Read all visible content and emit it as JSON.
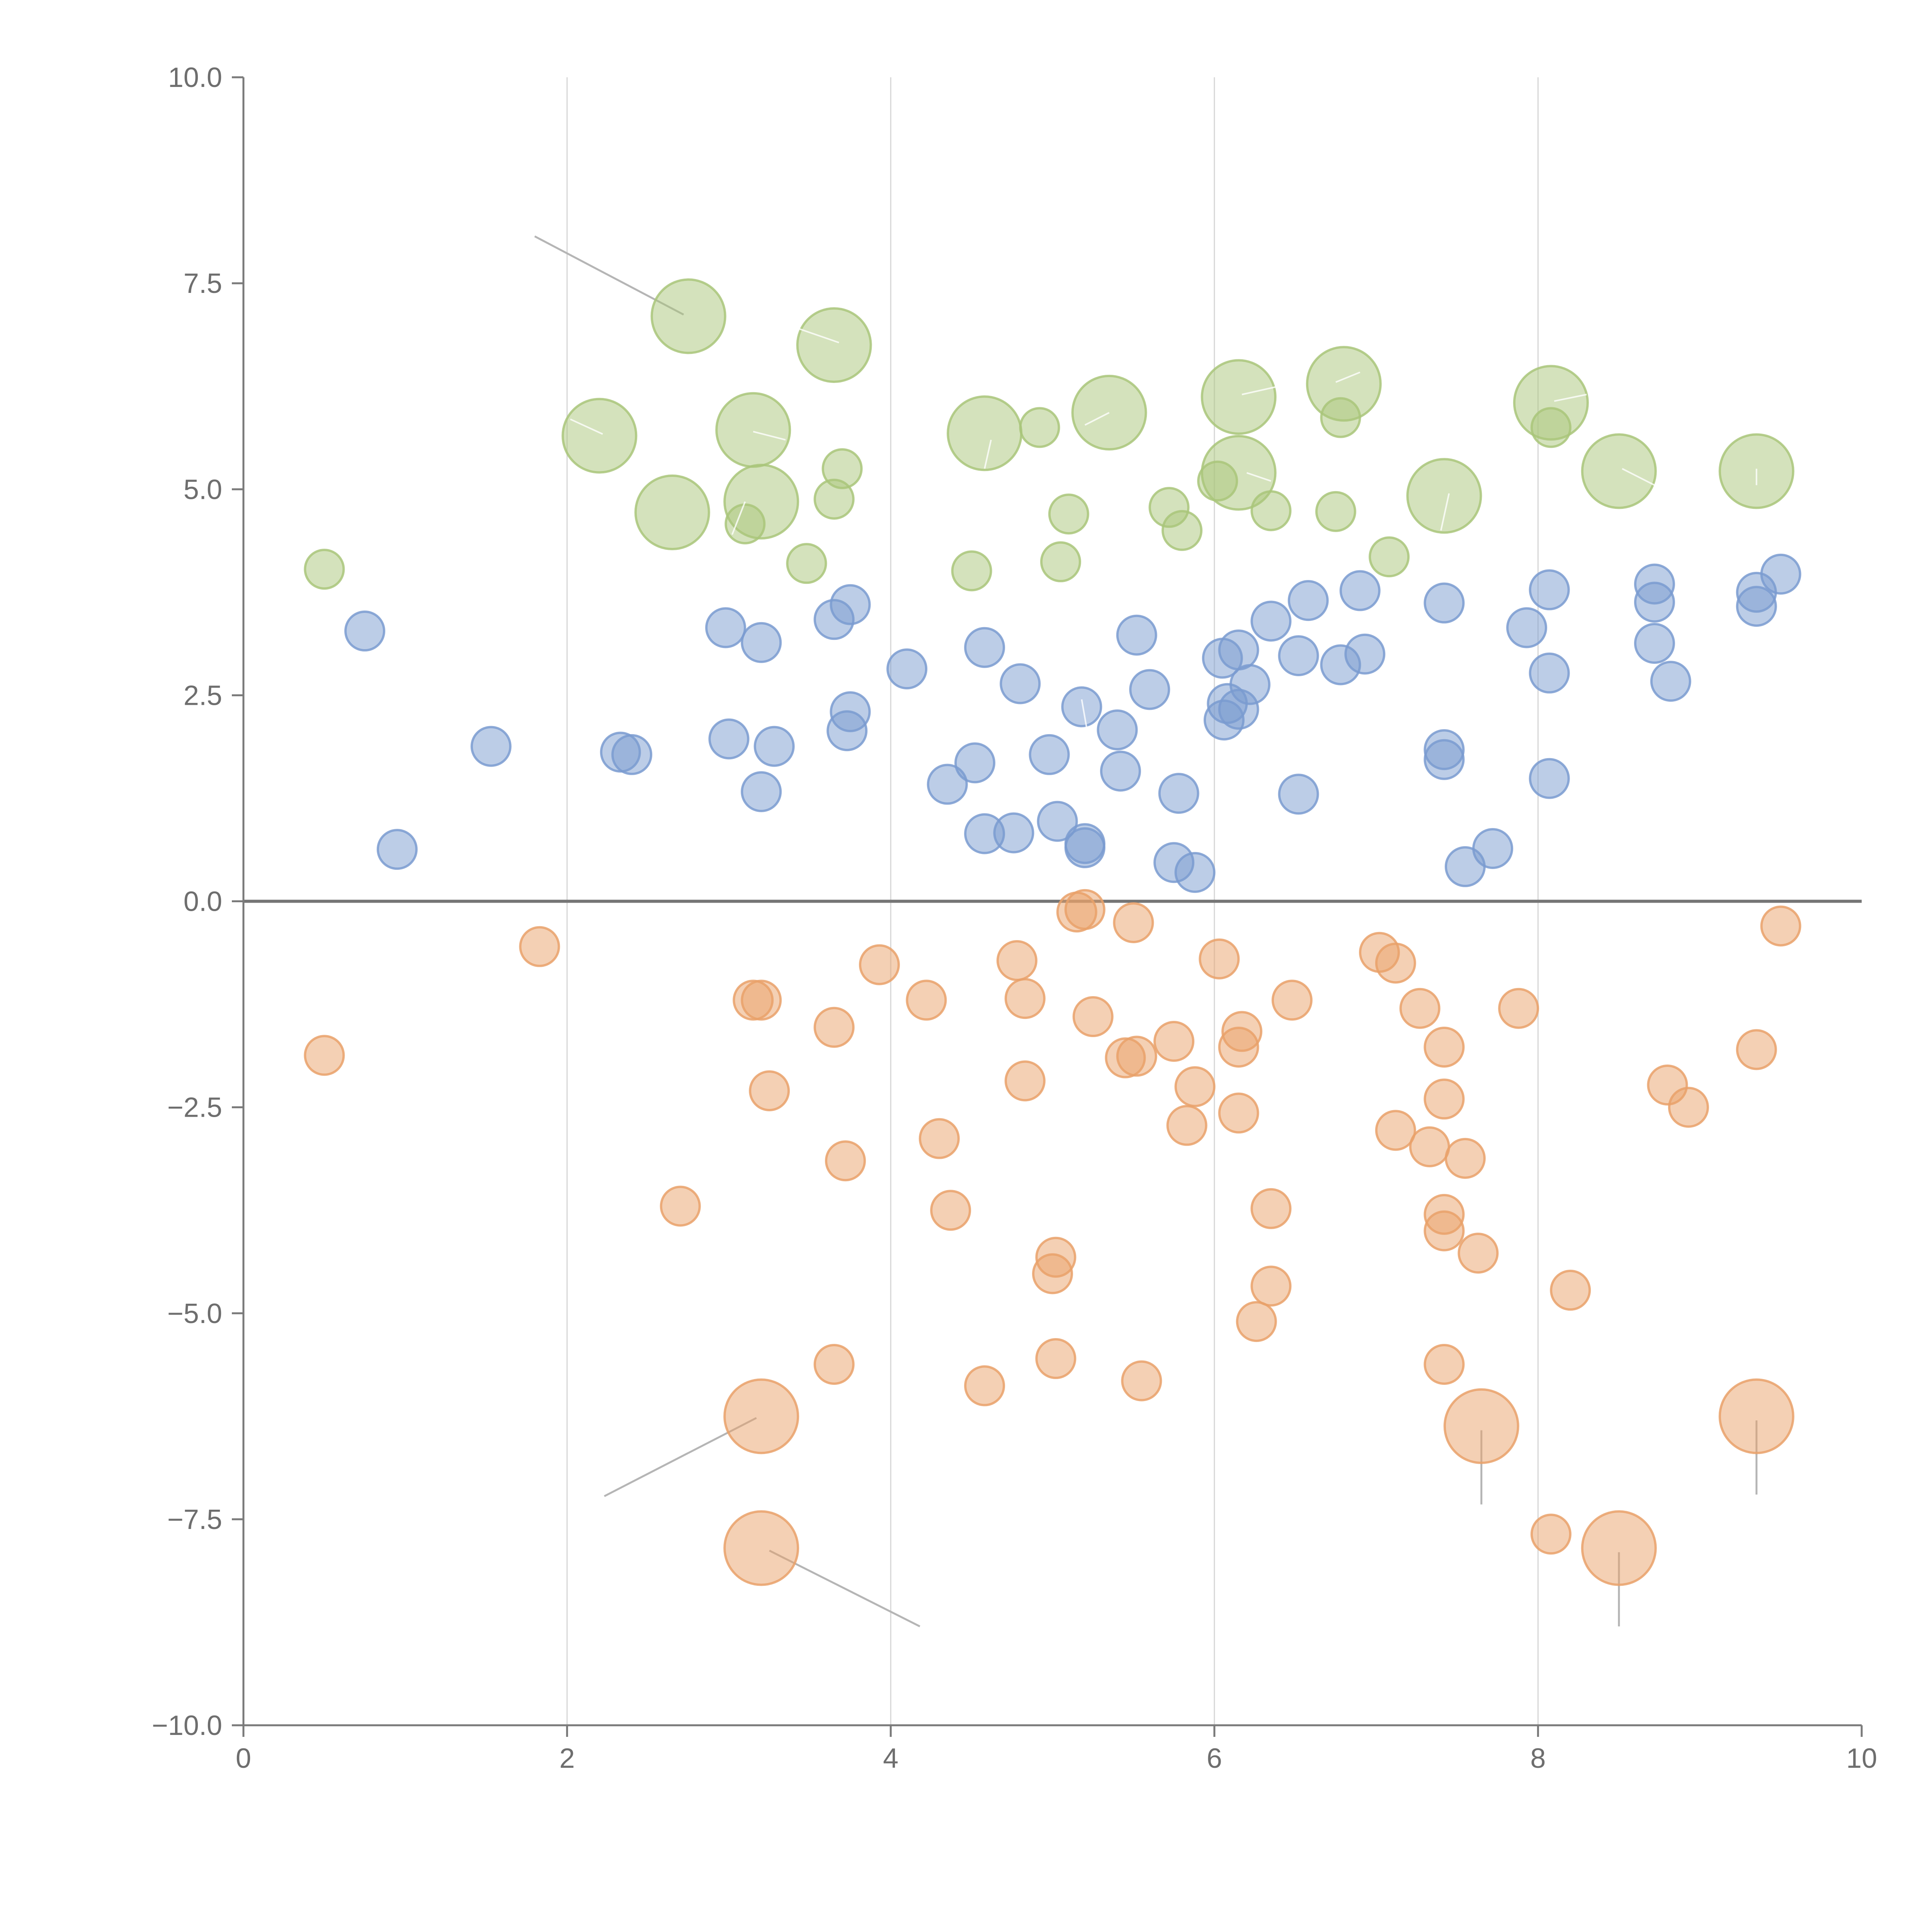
{
  "chart_data": {
    "type": "scatter",
    "title": "",
    "xlabel": "",
    "ylabel": "",
    "xlim": [
      0,
      10
    ],
    "ylim": [
      -10,
      10
    ],
    "x_ticks": [
      0,
      2,
      4,
      6,
      8,
      10
    ],
    "y_ticks": [
      -10,
      -7.5,
      -5,
      -2.5,
      0,
      2.5,
      5,
      7.5,
      10
    ],
    "x_tick_labels": [
      "0",
      "2",
      "4",
      "6",
      "8",
      "10"
    ],
    "y_tick_labels": [
      "−10.0",
      "−7.5",
      "−5.0",
      "−2.5",
      "0.0",
      "2.5",
      "5.0",
      "7.5",
      "10.0"
    ],
    "grid": "vertical lines at x ticks",
    "reference_line": {
      "y": 0
    },
    "colors": {
      "green": "#a9c57a",
      "blue": "#7a9bd0",
      "orange": "#e9a16a",
      "axis": "#7a7a7a",
      "grid": "#d6d6d6"
    },
    "series": [
      {
        "name": "green",
        "color": "#a9c57a",
        "points": [
          {
            "x": 0.5,
            "y": 4.03,
            "s": "sm"
          },
          {
            "x": 2.2,
            "y": 5.65,
            "s": "lg"
          },
          {
            "x": 2.65,
            "y": 4.72,
            "s": "lg"
          },
          {
            "x": 2.75,
            "y": 7.1,
            "s": "lg"
          },
          {
            "x": 3.1,
            "y": 4.58,
            "s": "sm"
          },
          {
            "x": 3.15,
            "y": 5.72,
            "s": "lg"
          },
          {
            "x": 3.2,
            "y": 4.85,
            "s": "lg"
          },
          {
            "x": 3.48,
            "y": 4.1,
            "s": "sm"
          },
          {
            "x": 3.65,
            "y": 4.88,
            "s": "sm"
          },
          {
            "x": 3.65,
            "y": 6.75,
            "s": "lg"
          },
          {
            "x": 3.7,
            "y": 5.25,
            "s": "sm"
          },
          {
            "x": 4.5,
            "y": 4.01,
            "s": "sm"
          },
          {
            "x": 4.58,
            "y": 5.68,
            "s": "lg"
          },
          {
            "x": 4.92,
            "y": 5.75,
            "s": "sm"
          },
          {
            "x": 5.05,
            "y": 4.12,
            "s": "sm"
          },
          {
            "x": 5.1,
            "y": 4.7,
            "s": "sm"
          },
          {
            "x": 5.35,
            "y": 5.93,
            "s": "lg"
          },
          {
            "x": 5.72,
            "y": 4.78,
            "s": "sm"
          },
          {
            "x": 5.8,
            "y": 4.5,
            "s": "sm"
          },
          {
            "x": 6.02,
            "y": 5.1,
            "s": "sm"
          },
          {
            "x": 6.15,
            "y": 6.12,
            "s": "lg"
          },
          {
            "x": 6.15,
            "y": 5.2,
            "s": "lg"
          },
          {
            "x": 6.35,
            "y": 4.74,
            "s": "sm"
          },
          {
            "x": 6.75,
            "y": 4.73,
            "s": "sm"
          },
          {
            "x": 6.78,
            "y": 5.87,
            "s": "sm"
          },
          {
            "x": 6.8,
            "y": 6.28,
            "s": "lg"
          },
          {
            "x": 7.08,
            "y": 4.18,
            "s": "sm"
          },
          {
            "x": 7.42,
            "y": 4.92,
            "s": "lg"
          },
          {
            "x": 8.08,
            "y": 6.05,
            "s": "lg"
          },
          {
            "x": 8.08,
            "y": 5.75,
            "s": "sm"
          },
          {
            "x": 8.5,
            "y": 5.22,
            "s": "lg"
          },
          {
            "x": 9.35,
            "y": 5.22,
            "s": "lg"
          }
        ]
      },
      {
        "name": "blue",
        "color": "#7a9bd0",
        "points": [
          {
            "x": 0.75,
            "y": 3.28
          },
          {
            "x": 0.95,
            "y": 0.63
          },
          {
            "x": 1.53,
            "y": 1.88
          },
          {
            "x": 2.33,
            "y": 1.81
          },
          {
            "x": 2.4,
            "y": 1.78
          },
          {
            "x": 2.98,
            "y": 3.32
          },
          {
            "x": 3.0,
            "y": 1.97
          },
          {
            "x": 3.2,
            "y": 3.14
          },
          {
            "x": 3.2,
            "y": 1.33
          },
          {
            "x": 3.28,
            "y": 1.88
          },
          {
            "x": 3.65,
            "y": 3.42
          },
          {
            "x": 3.73,
            "y": 2.07
          },
          {
            "x": 3.75,
            "y": 2.3
          },
          {
            "x": 3.75,
            "y": 3.6
          },
          {
            "x": 4.1,
            "y": 2.82
          },
          {
            "x": 4.35,
            "y": 1.42
          },
          {
            "x": 4.52,
            "y": 1.68
          },
          {
            "x": 4.58,
            "y": 0.82
          },
          {
            "x": 4.58,
            "y": 3.08
          },
          {
            "x": 4.76,
            "y": 0.83
          },
          {
            "x": 4.8,
            "y": 2.64
          },
          {
            "x": 4.98,
            "y": 1.78
          },
          {
            "x": 5.03,
            "y": 0.97
          },
          {
            "x": 5.18,
            "y": 2.36
          },
          {
            "x": 5.2,
            "y": 0.7
          },
          {
            "x": 5.2,
            "y": 0.65
          },
          {
            "x": 5.4,
            "y": 2.08
          },
          {
            "x": 5.42,
            "y": 1.58
          },
          {
            "x": 5.52,
            "y": 3.23
          },
          {
            "x": 5.6,
            "y": 2.57
          },
          {
            "x": 5.75,
            "y": 0.47
          },
          {
            "x": 5.78,
            "y": 1.31
          },
          {
            "x": 5.88,
            "y": 0.35
          },
          {
            "x": 6.05,
            "y": 2.95
          },
          {
            "x": 6.06,
            "y": 2.2
          },
          {
            "x": 6.08,
            "y": 2.4
          },
          {
            "x": 6.15,
            "y": 3.05
          },
          {
            "x": 6.15,
            "y": 2.33
          },
          {
            "x": 6.22,
            "y": 2.63
          },
          {
            "x": 6.35,
            "y": 3.4
          },
          {
            "x": 6.52,
            "y": 2.98
          },
          {
            "x": 6.52,
            "y": 1.3
          },
          {
            "x": 6.58,
            "y": 3.65
          },
          {
            "x": 6.78,
            "y": 2.87
          },
          {
            "x": 6.9,
            "y": 3.77
          },
          {
            "x": 6.93,
            "y": 3.0
          },
          {
            "x": 7.42,
            "y": 3.62
          },
          {
            "x": 7.42,
            "y": 1.84
          },
          {
            "x": 7.42,
            "y": 1.72
          },
          {
            "x": 7.55,
            "y": 0.42
          },
          {
            "x": 7.72,
            "y": 0.64
          },
          {
            "x": 7.93,
            "y": 3.32
          },
          {
            "x": 8.07,
            "y": 3.78
          },
          {
            "x": 8.07,
            "y": 2.77
          },
          {
            "x": 8.07,
            "y": 1.49
          },
          {
            "x": 8.72,
            "y": 3.85
          },
          {
            "x": 8.72,
            "y": 3.63
          },
          {
            "x": 8.72,
            "y": 3.13
          },
          {
            "x": 8.82,
            "y": 2.67
          },
          {
            "x": 9.35,
            "y": 3.75
          },
          {
            "x": 9.35,
            "y": 3.58
          },
          {
            "x": 9.5,
            "y": 3.97
          }
        ]
      },
      {
        "name": "orange",
        "color": "#e9a16a",
        "points": [
          {
            "x": 0.5,
            "y": -1.87,
            "s": "sm"
          },
          {
            "x": 1.83,
            "y": -0.55,
            "s": "sm"
          },
          {
            "x": 2.7,
            "y": -3.7,
            "s": "sm"
          },
          {
            "x": 3.15,
            "y": -1.2,
            "s": "sm"
          },
          {
            "x": 3.2,
            "y": -1.2,
            "s": "sm"
          },
          {
            "x": 3.2,
            "y": -6.25,
            "s": "lg"
          },
          {
            "x": 3.2,
            "y": -7.85,
            "s": "lg"
          },
          {
            "x": 3.25,
            "y": -2.3,
            "s": "sm"
          },
          {
            "x": 3.65,
            "y": -1.53,
            "s": "sm"
          },
          {
            "x": 3.65,
            "y": -5.62,
            "s": "sm"
          },
          {
            "x": 3.72,
            "y": -3.15,
            "s": "sm"
          },
          {
            "x": 3.93,
            "y": -0.77,
            "s": "sm"
          },
          {
            "x": 4.22,
            "y": -1.2,
            "s": "sm"
          },
          {
            "x": 4.3,
            "y": -2.88,
            "s": "sm"
          },
          {
            "x": 4.37,
            "y": -3.75,
            "s": "sm"
          },
          {
            "x": 4.58,
            "y": -5.88,
            "s": "sm"
          },
          {
            "x": 4.78,
            "y": -0.72,
            "s": "sm"
          },
          {
            "x": 4.83,
            "y": -1.18,
            "s": "sm"
          },
          {
            "x": 4.83,
            "y": -2.18,
            "s": "sm"
          },
          {
            "x": 5.0,
            "y": -4.52,
            "s": "sm"
          },
          {
            "x": 5.02,
            "y": -4.32,
            "s": "sm"
          },
          {
            "x": 5.02,
            "y": -5.55,
            "s": "sm"
          },
          {
            "x": 5.15,
            "y": -0.13,
            "s": "sm"
          },
          {
            "x": 5.2,
            "y": -0.1,
            "s": "sm"
          },
          {
            "x": 5.25,
            "y": -1.4,
            "s": "sm"
          },
          {
            "x": 5.45,
            "y": -1.9,
            "s": "sm"
          },
          {
            "x": 5.5,
            "y": -0.26,
            "s": "sm"
          },
          {
            "x": 5.52,
            "y": -1.88,
            "s": "sm"
          },
          {
            "x": 5.55,
            "y": -5.82,
            "s": "sm"
          },
          {
            "x": 5.75,
            "y": -1.7,
            "s": "sm"
          },
          {
            "x": 5.83,
            "y": -2.72,
            "s": "sm"
          },
          {
            "x": 5.88,
            "y": -2.25,
            "s": "sm"
          },
          {
            "x": 6.03,
            "y": -0.7,
            "s": "sm"
          },
          {
            "x": 6.15,
            "y": -1.77,
            "s": "sm"
          },
          {
            "x": 6.15,
            "y": -2.57,
            "s": "sm"
          },
          {
            "x": 6.17,
            "y": -1.58,
            "s": "sm"
          },
          {
            "x": 6.26,
            "y": -5.1,
            "s": "sm"
          },
          {
            "x": 6.35,
            "y": -3.73,
            "s": "sm"
          },
          {
            "x": 6.35,
            "y": -4.67,
            "s": "sm"
          },
          {
            "x": 6.48,
            "y": -1.2,
            "s": "sm"
          },
          {
            "x": 7.02,
            "y": -0.62,
            "s": "sm"
          },
          {
            "x": 7.12,
            "y": -0.75,
            "s": "sm"
          },
          {
            "x": 7.12,
            "y": -2.78,
            "s": "sm"
          },
          {
            "x": 7.27,
            "y": -1.3,
            "s": "sm"
          },
          {
            "x": 7.33,
            "y": -2.98,
            "s": "sm"
          },
          {
            "x": 7.42,
            "y": -1.77,
            "s": "sm"
          },
          {
            "x": 7.42,
            "y": -2.4,
            "s": "sm"
          },
          {
            "x": 7.42,
            "y": -3.8,
            "s": "sm"
          },
          {
            "x": 7.42,
            "y": -4.0,
            "s": "sm"
          },
          {
            "x": 7.42,
            "y": -5.62,
            "s": "sm"
          },
          {
            "x": 7.55,
            "y": -3.12,
            "s": "sm"
          },
          {
            "x": 7.63,
            "y": -4.27,
            "s": "sm"
          },
          {
            "x": 7.65,
            "y": -6.37,
            "s": "lg"
          },
          {
            "x": 7.88,
            "y": -1.3,
            "s": "sm"
          },
          {
            "x": 8.08,
            "y": -7.68,
            "s": "sm"
          },
          {
            "x": 8.2,
            "y": -4.72,
            "s": "sm"
          },
          {
            "x": 8.5,
            "y": -7.85,
            "s": "lg"
          },
          {
            "x": 8.8,
            "y": -2.23,
            "s": "sm"
          },
          {
            "x": 8.93,
            "y": -2.5,
            "s": "sm"
          },
          {
            "x": 9.35,
            "y": -1.8,
            "s": "sm"
          },
          {
            "x": 9.35,
            "y": -6.25,
            "s": "lg"
          },
          {
            "x": 9.5,
            "y": -0.3,
            "s": "sm"
          }
        ]
      }
    ],
    "leader_lines": [
      {
        "color": "grey",
        "x1": 1.8,
        "y1": 8.07,
        "x2": 2.72,
        "y2": 7.12
      },
      {
        "color": "grey",
        "x1": 2.23,
        "y1": -7.22,
        "x2": 3.17,
        "y2": -6.27
      },
      {
        "color": "grey",
        "x1": 3.25,
        "y1": -7.88,
        "x2": 4.18,
        "y2": -8.8
      },
      {
        "color": "grey",
        "x1": 7.65,
        "y1": -6.42,
        "x2": 7.65,
        "y2": -7.32
      },
      {
        "color": "grey",
        "x1": 8.5,
        "y1": -7.9,
        "x2": 8.5,
        "y2": -8.8
      },
      {
        "color": "grey",
        "x1": 9.35,
        "y1": -6.3,
        "x2": 9.35,
        "y2": -7.2
      },
      {
        "color": "white",
        "x1": 3.68,
        "y1": 6.78,
        "x2": 3.4,
        "y2": 6.97
      },
      {
        "color": "white",
        "x1": 2.22,
        "y1": 5.67,
        "x2": 2.02,
        "y2": 5.85
      },
      {
        "color": "white",
        "x1": 5.35,
        "y1": 5.93,
        "x2": 5.2,
        "y2": 5.78
      },
      {
        "color": "white",
        "x1": 6.75,
        "y1": 6.3,
        "x2": 6.9,
        "y2": 6.42
      },
      {
        "color": "white",
        "x1": 6.17,
        "y1": 6.15,
        "x2": 6.42,
        "y2": 6.26
      },
      {
        "color": "white",
        "x1": 8.1,
        "y1": 6.07,
        "x2": 8.3,
        "y2": 6.15
      },
      {
        "color": "white",
        "x1": 8.52,
        "y1": 5.25,
        "x2": 8.72,
        "y2": 5.05
      },
      {
        "color": "white",
        "x1": 9.35,
        "y1": 5.05,
        "x2": 9.35,
        "y2": 5.25
      },
      {
        "color": "white",
        "x1": 7.45,
        "y1": 4.95,
        "x2": 7.4,
        "y2": 4.5
      },
      {
        "color": "white",
        "x1": 6.2,
        "y1": 5.2,
        "x2": 6.35,
        "y2": 5.1
      },
      {
        "color": "white",
        "x1": 3.15,
        "y1": 5.7,
        "x2": 3.35,
        "y2": 5.6
      },
      {
        "color": "white",
        "x1": 3.1,
        "y1": 4.85,
        "x2": 3.02,
        "y2": 4.45
      },
      {
        "color": "white",
        "x1": 5.18,
        "y1": 2.45,
        "x2": 5.22,
        "y2": 2.0
      },
      {
        "color": "white",
        "x1": 4.62,
        "y1": 5.6,
        "x2": 4.58,
        "y2": 5.25
      }
    ]
  }
}
